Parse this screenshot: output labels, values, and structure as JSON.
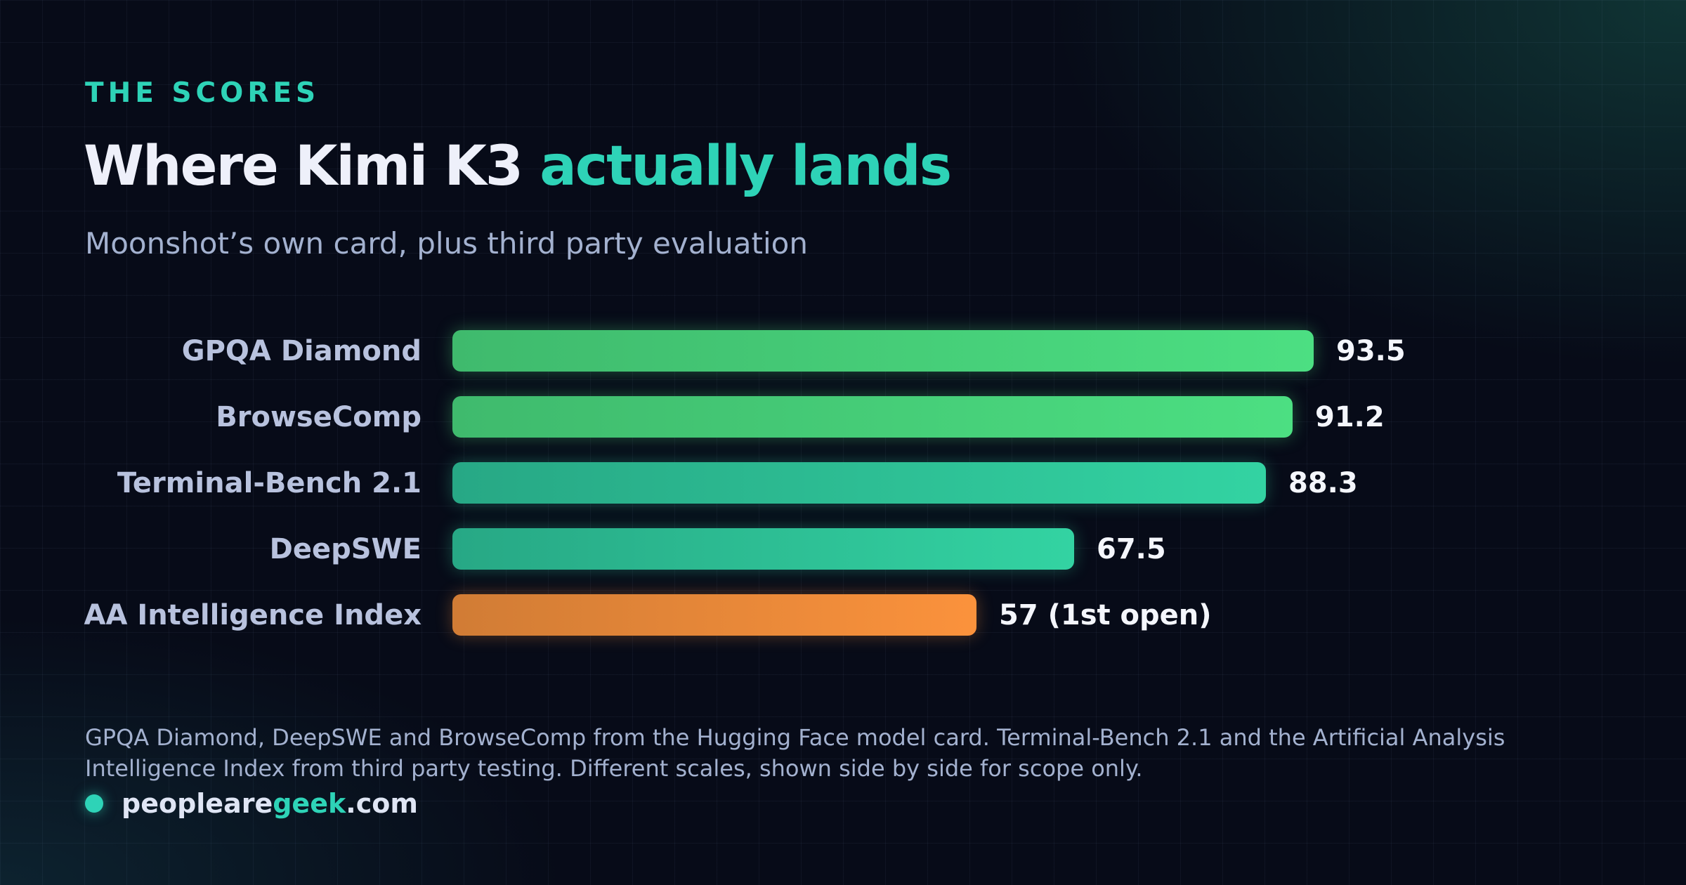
{
  "header": {
    "eyebrow": "THE SCORES",
    "title_main": "Where Kimi K3 ",
    "title_accent": "actually lands",
    "subtitle": "Moonshot’s own card, plus third party evaluation"
  },
  "chart_data": {
    "type": "bar",
    "orientation": "horizontal",
    "title": "Where Kimi K3 actually lands",
    "subtitle": "Moonshot’s own card, plus third party evaluation",
    "xlabel": "",
    "ylabel": "",
    "xlim": [
      0,
      100
    ],
    "grid": false,
    "legend": "none",
    "categories": [
      "GPQA Diamond",
      "BrowseComp",
      "Terminal-Bench 2.1",
      "DeepSWE",
      "AA Intelligence Index"
    ],
    "values": [
      93.5,
      91.2,
      88.3,
      67.5,
      57
    ],
    "value_labels": [
      "93.5",
      "91.2",
      "88.3",
      "67.5",
      "57 (1st open)"
    ],
    "bar_colors": [
      "#4cdf82",
      "#4cdf82",
      "#33d3a2",
      "#33d3a2",
      "#fb923c"
    ]
  },
  "footer": {
    "note": "GPQA Diamond, DeepSWE and BrowseComp from the Hugging Face model card. Terminal-Bench 2.1 and the Artificial Analysis Intelligence Index from third party testing. Different scales, shown side by side for scope only.",
    "brand_prefix": "peopleare",
    "brand_highlight": "geek",
    "brand_suffix": ".com"
  },
  "colors": {
    "accent": "#2ed3b7",
    "background": "#070b18",
    "green": "#4cdf82",
    "teal": "#33d3a2",
    "orange": "#fb923c"
  }
}
